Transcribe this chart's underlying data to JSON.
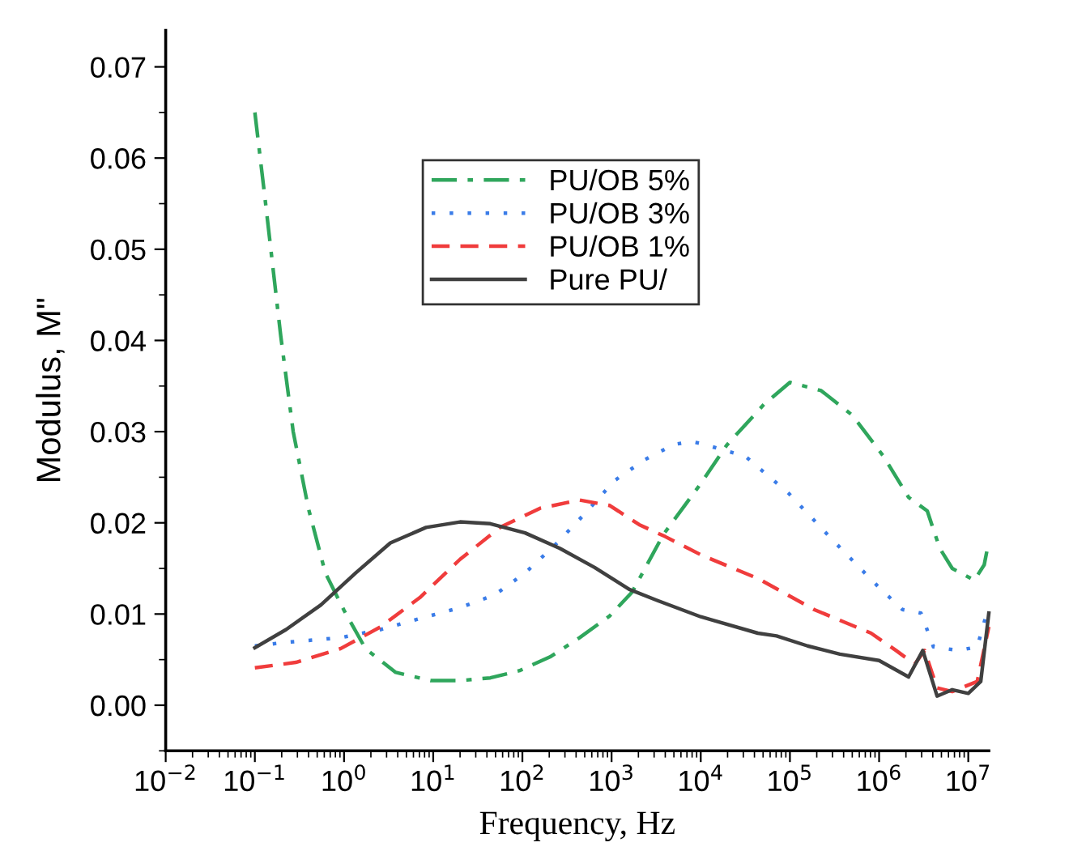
{
  "chart_data": {
    "type": "line",
    "xlabel": "Frequency, Hz",
    "ylabel": "Modulus, M\"",
    "log": "x",
    "xlim": [
      0.01,
      17000000
    ],
    "ylim": [
      -0.005,
      0.074
    ],
    "xticks": [
      {
        "value": 0.01,
        "label": "10$^{−2}$"
      },
      {
        "value": 0.1,
        "label": "10$^{−1}$"
      },
      {
        "value": 1,
        "label": "10$^{0}$"
      },
      {
        "value": 10,
        "label": "10$^{1}$"
      },
      {
        "value": 100,
        "label": "10$^{2}$"
      },
      {
        "value": 1000,
        "label": "10$^{3}$"
      },
      {
        "value": 10000,
        "label": "10$^{4}$"
      },
      {
        "value": 100000,
        "label": "10$^{5}$"
      },
      {
        "value": 1000000,
        "label": "10$^{6}$"
      },
      {
        "value": 10000000,
        "label": "10$^{7}$"
      }
    ],
    "yticks": [
      {
        "value": 0,
        "label": "0.00"
      },
      {
        "value": 0.01,
        "label": "0.01"
      },
      {
        "value": 0.02,
        "label": "0.02"
      },
      {
        "value": 0.03,
        "label": "0.03"
      },
      {
        "value": 0.04,
        "label": "0.04"
      },
      {
        "value": 0.05,
        "label": "0.05"
      },
      {
        "value": 0.06,
        "label": "0.06"
      },
      {
        "value": 0.07,
        "label": "0.07"
      }
    ],
    "grid": false,
    "legend": "top",
    "marker": "none",
    "series": [
      {
        "name": "PU/OB 5%",
        "color": "#2fa65c",
        "line_style": "dashdot",
        "x": [
          0.1,
          0.132,
          0.195,
          0.269,
          0.398,
          0.617,
          1,
          1.74,
          3.8,
          9.33,
          20,
          43.7,
          93.3,
          204,
          437,
          955,
          1700,
          3800,
          10000,
          19500,
          51300,
          100000,
          224000,
          501000,
          1120000,
          2140000,
          3470000,
          4790000,
          6610000,
          11700000,
          15100000,
          17000000
        ],
        "values": [
          0.065,
          0.055,
          0.0405,
          0.03,
          0.0216,
          0.0145,
          0.0104,
          0.0062,
          0.0036,
          0.0027,
          0.0027,
          0.003,
          0.0038,
          0.0053,
          0.0074,
          0.0098,
          0.0124,
          0.0187,
          0.0243,
          0.0285,
          0.033,
          0.0354,
          0.0345,
          0.0318,
          0.0273,
          0.0228,
          0.0213,
          0.0172,
          0.015,
          0.0137,
          0.0154,
          0.018
        ]
      },
      {
        "name": "PU/OB 3%",
        "color": "#3a7ce8",
        "line_style": "dotted",
        "x": [
          0.1,
          0.224,
          0.912,
          2.57,
          7.08,
          20,
          49,
          107,
          229,
          501,
          1070,
          2340,
          5010,
          7940,
          10000,
          31600,
          97700,
          309000,
          955000,
          1820000,
          2950000,
          4070000,
          7760000,
          12600000,
          17000000
        ],
        "values": [
          0.0065,
          0.0069,
          0.0074,
          0.0083,
          0.0095,
          0.0107,
          0.0121,
          0.0145,
          0.0175,
          0.021,
          0.0246,
          0.0269,
          0.0286,
          0.0289,
          0.0287,
          0.0273,
          0.0232,
          0.018,
          0.0131,
          0.0105,
          0.0101,
          0.0064,
          0.006,
          0.0064,
          0.0109
        ]
      },
      {
        "name": "PU/OB 1%",
        "color": "#f03c3c",
        "line_style": "dashed",
        "x": [
          0.1,
          0.288,
          0.912,
          2.57,
          7.08,
          20,
          56.2,
          158,
          437,
          955,
          2040,
          3980,
          10000,
          43700,
          186000,
          813000,
          1550000,
          2510000,
          3240000,
          4470000,
          6610000,
          12600000,
          17000000
        ],
        "values": [
          0.0041,
          0.0047,
          0.0062,
          0.0086,
          0.0118,
          0.016,
          0.0195,
          0.0216,
          0.0225,
          0.0219,
          0.0198,
          0.0185,
          0.0165,
          0.0139,
          0.0105,
          0.0079,
          0.006,
          0.0045,
          0.006,
          0.0019,
          0.0015,
          0.0026,
          0.0086
        ]
      },
      {
        "name": "Pure PU/",
        "color": "#404040",
        "line_style": "solid",
        "x": [
          0.1,
          0.224,
          0.55,
          1.35,
          3.31,
          8.32,
          20,
          43.7,
          107,
          263,
          646,
          1580,
          3240,
          10000,
          43700,
          70800,
          158000,
          363000,
          1000000,
          2140000,
          3090000,
          4470000,
          6610000,
          10000000,
          13800000,
          17000000
        ],
        "values": [
          0.0063,
          0.0083,
          0.011,
          0.0145,
          0.0178,
          0.0195,
          0.0201,
          0.0199,
          0.0189,
          0.0172,
          0.0151,
          0.0127,
          0.0115,
          0.0097,
          0.0079,
          0.0076,
          0.0065,
          0.0056,
          0.0049,
          0.0031,
          0.006,
          0.001,
          0.0017,
          0.0013,
          0.0026,
          0.0101
        ]
      }
    ]
  }
}
